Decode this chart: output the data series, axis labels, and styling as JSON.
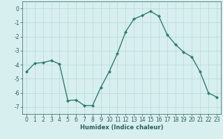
{
  "x": [
    0,
    1,
    2,
    3,
    4,
    5,
    6,
    7,
    8,
    9,
    10,
    11,
    12,
    13,
    14,
    15,
    16,
    17,
    18,
    19,
    20,
    21,
    22,
    23
  ],
  "y": [
    -4.5,
    -3.9,
    -3.85,
    -3.7,
    -3.95,
    -6.55,
    -6.5,
    -6.9,
    -6.9,
    -5.6,
    -4.5,
    -3.2,
    -1.65,
    -0.75,
    -0.5,
    -0.2,
    -0.55,
    -1.85,
    -2.55,
    -3.1,
    -3.45,
    -4.5,
    -6.0,
    -6.3
  ],
  "line_color": "#2e7d6e",
  "marker": "D",
  "markersize": 2.2,
  "linewidth": 1.0,
  "bg_color": "#d8efef",
  "grid_color": "#b8d8d8",
  "tick_color": "#2a5f58",
  "xlabel": "Humidex (Indice chaleur)",
  "xlabel_fontsize": 6.0,
  "xlim": [
    -0.5,
    23.5
  ],
  "ylim": [
    -7.5,
    0.5
  ],
  "yticks": [
    0,
    -1,
    -2,
    -3,
    -4,
    -5,
    -6,
    -7
  ],
  "xticks": [
    0,
    1,
    2,
    3,
    4,
    5,
    6,
    7,
    8,
    9,
    10,
    11,
    12,
    13,
    14,
    15,
    16,
    17,
    18,
    19,
    20,
    21,
    22,
    23
  ],
  "tick_fontsize": 5.5
}
